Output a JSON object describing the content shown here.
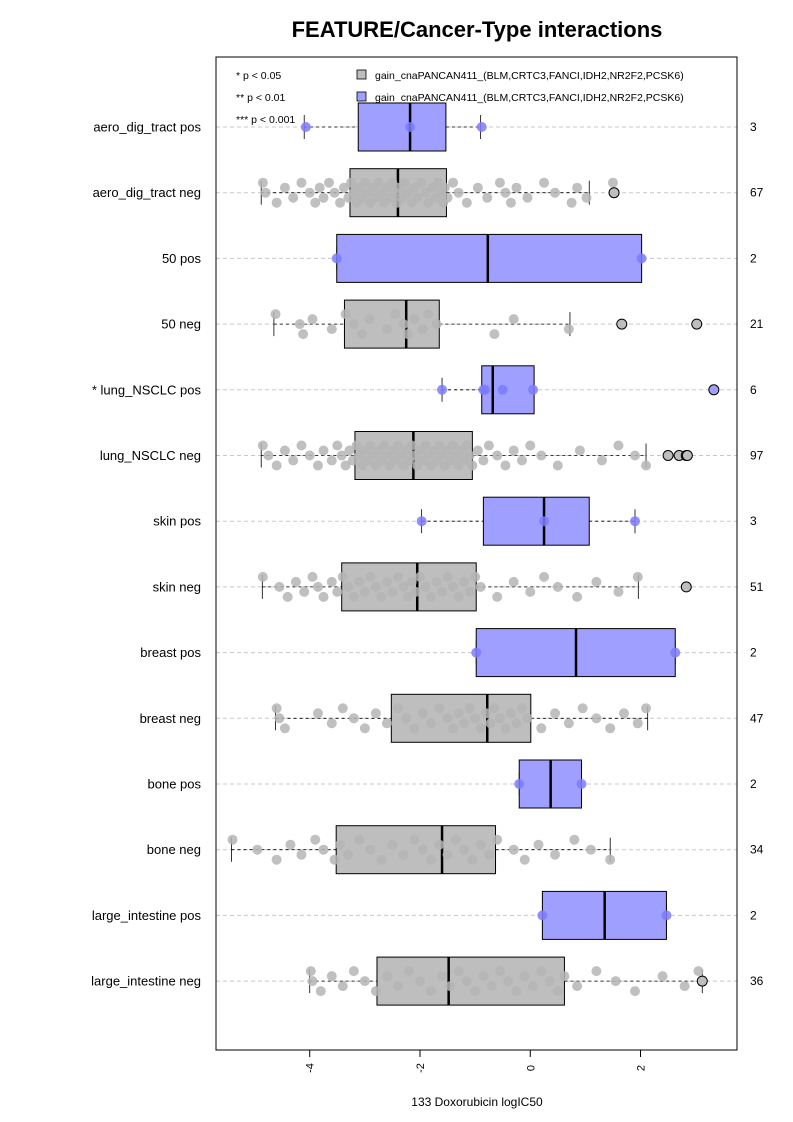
{
  "chart_data": {
    "type": "box",
    "title": "FEATURE/Cancer-Type interactions",
    "xlabel": "133 Doxorubicin logIC50",
    "xlim": [
      -5.7,
      3.75
    ],
    "xticks": [
      -4,
      -2,
      0,
      2
    ],
    "xtick_labels": [
      "-4",
      "-2",
      "0",
      "2"
    ],
    "grid": "horizontal dashed",
    "colors": {
      "neg": "#bebebe",
      "pos": "#9f9fff",
      "neg_point": "#b5b5b5",
      "pos_point": "#7b7bff"
    },
    "legend": {
      "placement": "top",
      "significance": [
        "* p < 0.05",
        "** p < 0.01",
        "*** p < 0.001"
      ],
      "entries": [
        {
          "label": "gain_cnaPANCAN411_(BLM,CRTC3,FANCI,IDH2,NR2F2,PCSK6)",
          "color": "#bebebe"
        },
        {
          "label": "gain_cnaPANCAN411_(BLM,CRTC3,FANCI,IDH2,NR2F2,PCSK6)",
          "color": "#9f9fff"
        }
      ]
    },
    "groups": [
      {
        "label": "aero_dig_tract pos",
        "count": "3",
        "status": "pos",
        "q1": -3.12,
        "median": -2.18,
        "q3": -1.53,
        "wlo": -4.1,
        "whi": -0.9,
        "points": [
          -4.07,
          -2.18,
          -0.88
        ],
        "outliers": []
      },
      {
        "label": "aero_dig_tract neg",
        "count": "67",
        "status": "neg",
        "q1": -3.27,
        "median": -2.4,
        "q3": -1.52,
        "wlo": -4.88,
        "whi": 1.07,
        "points": [
          -4.85,
          -4.8,
          -4.6,
          -4.45,
          -4.3,
          -4.15,
          -4.0,
          -3.9,
          -3.82,
          -3.75,
          -3.65,
          -3.55,
          -3.45,
          -3.38,
          -3.3,
          -3.25,
          -3.2,
          -3.15,
          -3.1,
          -3.05,
          -3.0,
          -2.95,
          -2.9,
          -2.85,
          -2.8,
          -2.75,
          -2.7,
          -2.65,
          -2.6,
          -2.55,
          -2.5,
          -2.45,
          -2.42,
          -2.38,
          -2.33,
          -2.28,
          -2.22,
          -2.15,
          -2.1,
          -2.05,
          -1.98,
          -1.9,
          -1.85,
          -1.78,
          -1.72,
          -1.67,
          -1.62,
          -1.58,
          -1.55,
          -1.5,
          -1.4,
          -1.3,
          -1.15,
          -0.95,
          -0.78,
          -0.55,
          -0.45,
          -0.35,
          -0.25,
          -0.05,
          0.25,
          0.45,
          0.75,
          0.85,
          1.02,
          1.5
        ],
        "outliers": [
          1.52
        ]
      },
      {
        "label": "50 pos",
        "count": "2",
        "status": "pos",
        "q1": -3.51,
        "median": -0.77,
        "q3": 2.02,
        "wlo": -3.51,
        "whi": 2.02,
        "points": [
          -3.51,
          2.02
        ],
        "outliers": []
      },
      {
        "label": "50 neg",
        "count": "21",
        "status": "neg",
        "q1": -3.37,
        "median": -2.25,
        "q3": -1.65,
        "wlo": -4.65,
        "whi": 0.72,
        "points": [
          -4.62,
          -4.18,
          -4.12,
          -3.95,
          -3.6,
          -3.35,
          -3.2,
          -3.05,
          -2.92,
          -2.6,
          -2.45,
          -2.3,
          -2.22,
          -2.1,
          -1.95,
          -1.85,
          -1.7,
          -0.65,
          -0.3,
          0.7
        ],
        "outliers": [
          1.66,
          3.02
        ]
      },
      {
        "label": "* lung_NSCLC pos",
        "count": "6",
        "status": "pos",
        "q1": -0.88,
        "median": -0.68,
        "q3": 0.07,
        "wlo": -1.6,
        "whi": 0.07,
        "points": [
          -1.6,
          -0.85,
          -0.82,
          -0.5,
          0.05
        ],
        "outliers": [
          3.33
        ]
      },
      {
        "label": "lung_NSCLC neg",
        "count": "97",
        "status": "neg",
        "q1": -3.18,
        "median": -2.12,
        "q3": -1.05,
        "wlo": -4.88,
        "whi": 2.1,
        "points": [
          -4.85,
          -4.75,
          -4.6,
          -4.45,
          -4.3,
          -4.15,
          -4.0,
          -3.85,
          -3.75,
          -3.6,
          -3.5,
          -3.42,
          -3.35,
          -3.28,
          -3.22,
          -3.15,
          -3.1,
          -3.05,
          -3.0,
          -2.95,
          -2.9,
          -2.85,
          -2.8,
          -2.75,
          -2.7,
          -2.65,
          -2.6,
          -2.55,
          -2.5,
          -2.45,
          -2.4,
          -2.35,
          -2.3,
          -2.25,
          -2.2,
          -2.15,
          -2.1,
          -2.05,
          -2.0,
          -1.95,
          -1.9,
          -1.85,
          -1.8,
          -1.75,
          -1.7,
          -1.65,
          -1.6,
          -1.55,
          -1.5,
          -1.45,
          -1.4,
          -1.35,
          -1.3,
          -1.25,
          -1.2,
          -1.15,
          -1.1,
          -1.05,
          -0.95,
          -0.85,
          -0.75,
          -0.6,
          -0.45,
          -0.3,
          -0.15,
          0.0,
          0.2,
          0.5,
          0.9,
          1.3,
          1.6,
          1.9,
          2.1
        ],
        "outliers": [
          2.5,
          2.7,
          2.83,
          2.85
        ]
      },
      {
        "label": "skin pos",
        "count": "3",
        "status": "pos",
        "q1": -0.85,
        "median": 0.25,
        "q3": 1.07,
        "wlo": -1.97,
        "whi": 1.9,
        "points": [
          -1.97,
          0.25,
          1.9
        ],
        "outliers": []
      },
      {
        "label": "skin neg",
        "count": "51",
        "status": "neg",
        "q1": -3.42,
        "median": -2.05,
        "q3": -0.98,
        "wlo": -4.86,
        "whi": 1.96,
        "points": [
          -4.85,
          -4.55,
          -4.4,
          -4.25,
          -4.1,
          -3.95,
          -3.85,
          -3.75,
          -3.6,
          -3.5,
          -3.4,
          -3.3,
          -3.2,
          -3.1,
          -3.0,
          -2.9,
          -2.8,
          -2.7,
          -2.6,
          -2.5,
          -2.4,
          -2.3,
          -2.22,
          -2.15,
          -2.08,
          -2.0,
          -1.9,
          -1.8,
          -1.7,
          -1.6,
          -1.5,
          -1.4,
          -1.3,
          -1.2,
          -1.1,
          -1.0,
          -0.9,
          -0.6,
          -0.3,
          0.0,
          0.25,
          0.5,
          0.85,
          1.2,
          1.6,
          1.95
        ],
        "outliers": [
          2.83
        ]
      },
      {
        "label": "breast pos",
        "count": "2",
        "status": "pos",
        "q1": -0.98,
        "median": 0.83,
        "q3": 2.63,
        "wlo": -0.98,
        "whi": 2.63,
        "points": [
          -0.98,
          2.63
        ],
        "outliers": []
      },
      {
        "label": "breast neg",
        "count": "47",
        "status": "neg",
        "q1": -2.52,
        "median": -0.78,
        "q3": 0.01,
        "wlo": -4.62,
        "whi": 2.13,
        "points": [
          -4.6,
          -4.55,
          -4.45,
          -3.85,
          -3.6,
          -3.4,
          -3.2,
          -3.0,
          -2.8,
          -2.6,
          -2.4,
          -2.25,
          -2.1,
          -1.95,
          -1.8,
          -1.65,
          -1.5,
          -1.4,
          -1.3,
          -1.2,
          -1.1,
          -1.0,
          -0.9,
          -0.8,
          -0.72,
          -0.65,
          -0.55,
          -0.45,
          -0.35,
          -0.25,
          -0.15,
          -0.05,
          0.2,
          0.45,
          0.7,
          0.95,
          1.2,
          1.45,
          1.7,
          1.95,
          2.1
        ],
        "outliers": []
      },
      {
        "label": "bone pos",
        "count": "2",
        "status": "pos",
        "q1": -0.2,
        "median": 0.37,
        "q3": 0.93,
        "wlo": -0.2,
        "whi": 0.93,
        "points": [
          -0.2,
          0.93
        ],
        "outliers": []
      },
      {
        "label": "bone neg",
        "count": "34",
        "status": "neg",
        "q1": -3.52,
        "median": -1.6,
        "q3": -0.63,
        "wlo": -5.42,
        "whi": 1.45,
        "points": [
          -5.4,
          -4.95,
          -4.6,
          -4.35,
          -4.15,
          -3.9,
          -3.75,
          -3.55,
          -3.45,
          -3.3,
          -3.1,
          -2.9,
          -2.7,
          -2.5,
          -2.3,
          -2.1,
          -1.95,
          -1.8,
          -1.65,
          -1.5,
          -1.35,
          -1.2,
          -1.05,
          -0.9,
          -0.75,
          -0.6,
          -0.3,
          -0.1,
          0.15,
          0.45,
          0.8,
          1.1,
          1.45
        ],
        "outliers": []
      },
      {
        "label": "large_intestine pos",
        "count": "2",
        "status": "pos",
        "q1": 0.22,
        "median": 1.35,
        "q3": 2.47,
        "wlo": 0.22,
        "whi": 2.47,
        "points": [
          0.22,
          2.47
        ],
        "outliers": []
      },
      {
        "label": "large_intestine neg",
        "count": "36",
        "status": "neg",
        "q1": -2.78,
        "median": -1.48,
        "q3": 0.62,
        "wlo": -4.0,
        "whi": 3.12,
        "points": [
          -3.98,
          -3.95,
          -3.8,
          -3.6,
          -3.4,
          -3.2,
          -3.0,
          -2.8,
          -2.6,
          -2.4,
          -2.2,
          -2.0,
          -1.8,
          -1.6,
          -1.45,
          -1.3,
          -1.15,
          -1.0,
          -0.85,
          -0.7,
          -0.55,
          -0.4,
          -0.25,
          -0.1,
          0.05,
          0.2,
          0.35,
          0.5,
          0.62,
          0.85,
          1.2,
          1.55,
          1.9,
          2.4,
          2.8,
          3.05
        ],
        "outliers": [
          3.12
        ]
      }
    ]
  }
}
